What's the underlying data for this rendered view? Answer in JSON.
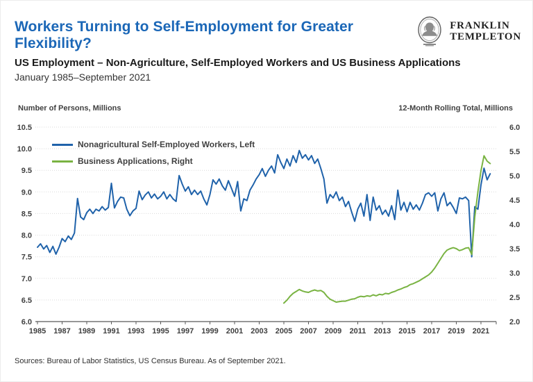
{
  "header": {
    "title": "Workers Turning to Self-Employment for Greater Flexibility?",
    "title_color": "#1b67b7",
    "logo": {
      "line1": "FRANKLIN",
      "line2": "TEMPLETON"
    },
    "subtitle": "US Employment – Non-Agriculture, Self-Employed Workers and US Business Applications",
    "date_range": "January 1985–September 2021"
  },
  "chart_data": {
    "type": "line",
    "title": "US Employment – Non-Agriculture, Self-Employed Workers and US Business Applications",
    "subtitle": "January 1985–September 2021",
    "grid": {
      "color": "#d9d9d9",
      "style": "dotted"
    },
    "axis_color": "#595959",
    "tick_label_color": "#3f3f3f",
    "legend_position": "top-left-inside",
    "left_axis": {
      "title": "Number of Persons, Millions",
      "min": 6.0,
      "max": 10.5,
      "ticks": [
        "10.5",
        "10.0",
        "9.5",
        "9.0",
        "8.5",
        "8.0",
        "7.5",
        "7.0",
        "6.5",
        "6.0"
      ]
    },
    "right_axis": {
      "title": "12-Month Rolling Total, Millions",
      "min": 2.0,
      "max": 6.0,
      "ticks": [
        "6.0",
        "5.5",
        "5.0",
        "4.5",
        "4.0",
        "3.5",
        "3.0",
        "2.5",
        "2.0"
      ]
    },
    "x_axis": {
      "min": 1985,
      "max": 2022.2,
      "tick_years": [
        1985,
        1987,
        1989,
        1991,
        1993,
        1995,
        1997,
        1999,
        2001,
        2003,
        2005,
        2007,
        2009,
        2011,
        2013,
        2015,
        2017,
        2019,
        2021
      ]
    },
    "series": [
      {
        "name": "Nonagricultural Self-Employed Workers, Left",
        "axis": "left",
        "color": "#1f62aa",
        "x_start": 1985.0,
        "x_step": 0.25,
        "values": [
          7.72,
          7.8,
          7.68,
          7.76,
          7.6,
          7.74,
          7.56,
          7.72,
          7.92,
          7.85,
          7.98,
          7.9,
          8.05,
          8.85,
          8.42,
          8.36,
          8.52,
          8.6,
          8.5,
          8.6,
          8.56,
          8.66,
          8.58,
          8.64,
          9.2,
          8.63,
          8.78,
          8.88,
          8.86,
          8.6,
          8.45,
          8.56,
          8.62,
          9.02,
          8.82,
          8.93,
          9.0,
          8.86,
          8.95,
          8.84,
          8.9,
          9.0,
          8.84,
          8.94,
          8.84,
          8.78,
          9.38,
          9.18,
          9.02,
          9.12,
          8.94,
          9.04,
          8.94,
          9.02,
          8.84,
          8.7,
          8.94,
          9.28,
          9.18,
          9.3,
          9.14,
          9.04,
          9.26,
          9.08,
          8.9,
          9.24,
          8.56,
          8.84,
          8.8,
          9.04,
          9.16,
          9.3,
          9.4,
          9.54,
          9.36,
          9.5,
          9.6,
          9.44,
          9.86,
          9.68,
          9.54,
          9.76,
          9.6,
          9.84,
          9.68,
          9.96,
          9.78,
          9.86,
          9.74,
          9.84,
          9.66,
          9.76,
          9.54,
          9.3,
          8.74,
          8.94,
          8.86,
          9.0,
          8.8,
          8.88,
          8.66,
          8.78,
          8.54,
          8.32,
          8.6,
          8.74,
          8.44,
          8.94,
          8.34,
          8.88,
          8.58,
          8.68,
          8.48,
          8.58,
          8.44,
          8.68,
          8.36,
          9.04,
          8.58,
          8.76,
          8.54,
          8.76,
          8.6,
          8.7,
          8.58,
          8.74,
          8.94,
          8.98,
          8.9,
          8.98,
          8.56,
          8.84,
          8.98,
          8.68,
          8.76,
          8.64,
          8.5,
          8.86,
          8.84,
          8.88,
          8.8,
          7.5,
          8.66,
          8.6,
          9.16,
          9.55,
          9.28,
          9.42
        ]
      },
      {
        "name": "Business Applications, Right",
        "axis": "right",
        "color": "#79b342",
        "x_start": 2005.0,
        "x_step": 0.25,
        "values": [
          2.38,
          2.44,
          2.52,
          2.58,
          2.62,
          2.66,
          2.63,
          2.61,
          2.6,
          2.63,
          2.65,
          2.63,
          2.64,
          2.6,
          2.52,
          2.46,
          2.43,
          2.4,
          2.41,
          2.42,
          2.42,
          2.44,
          2.46,
          2.47,
          2.5,
          2.52,
          2.51,
          2.53,
          2.52,
          2.55,
          2.53,
          2.56,
          2.55,
          2.58,
          2.57,
          2.6,
          2.62,
          2.65,
          2.67,
          2.7,
          2.72,
          2.76,
          2.78,
          2.81,
          2.84,
          2.88,
          2.92,
          2.96,
          3.02,
          3.1,
          3.2,
          3.3,
          3.4,
          3.47,
          3.5,
          3.52,
          3.5,
          3.46,
          3.48,
          3.51,
          3.52,
          3.38,
          4.15,
          4.67,
          5.1,
          5.41,
          5.3,
          5.25
        ]
      }
    ]
  },
  "footer": {
    "sources": "Sources: Bureau of Labor Statistics, US Census Bureau. As of September 2021."
  }
}
